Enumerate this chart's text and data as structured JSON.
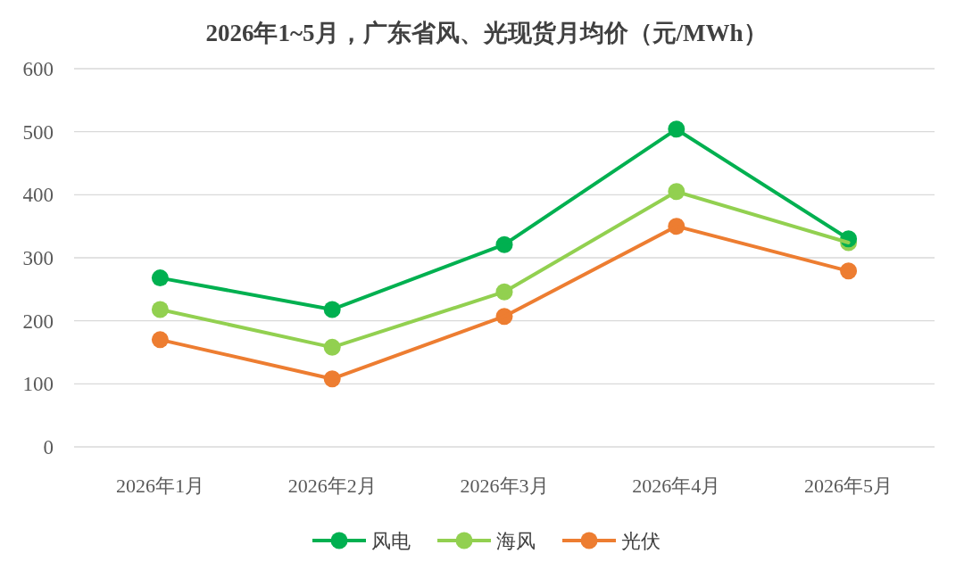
{
  "chart_data": {
    "type": "line",
    "title": "2026年1~5月，广东省风、光现货月均价（元/MWh）",
    "categories": [
      "2026年1月",
      "2026年2月",
      "2026年3月",
      "2026年4月",
      "2026年5月"
    ],
    "series": [
      {
        "name": "风电",
        "color": "#00b050",
        "values": [
          268,
          218,
          321,
          504,
          330
        ]
      },
      {
        "name": "海风",
        "color": "#92d050",
        "values": [
          218,
          158,
          246,
          405,
          324
        ]
      },
      {
        "name": "光伏",
        "color": "#ed7d31",
        "values": [
          170,
          108,
          207,
          350,
          279
        ]
      }
    ],
    "ylim": [
      0,
      600
    ],
    "yticks": [
      0,
      100,
      200,
      300,
      400,
      500,
      600
    ],
    "grid": "y",
    "legend": "bottom",
    "marker": "circle",
    "line_style": "solid"
  }
}
